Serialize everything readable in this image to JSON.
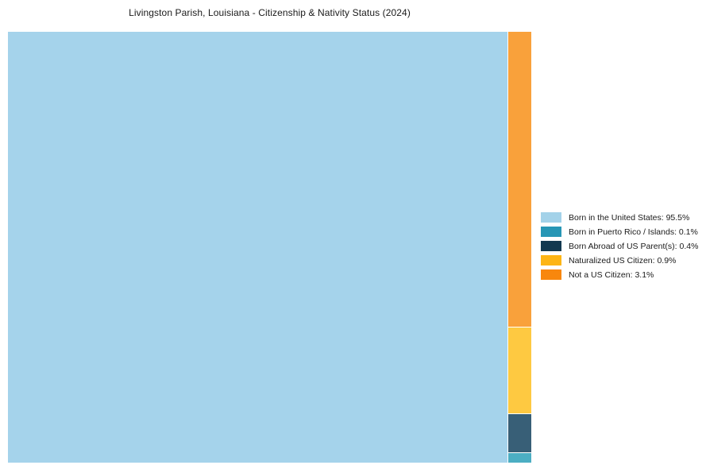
{
  "background_color": "#ffffff",
  "chart_data": {
    "type": "treemap",
    "title": "Livingston Parish, Louisiana - Citizenship & Nativity Status (2024)",
    "legend_position": "right",
    "layout": "largest value fills left block full-height; remaining values stacked top-to-bottom (descending) in right column",
    "units": "percent",
    "total_pct": 100,
    "items": [
      {
        "id": "born-us",
        "label": "Born in the United States",
        "value_pct": 95.5,
        "legend_text": "Born in the United States: 95.5%",
        "block_color": "#a5d3eb",
        "legend_color": "#a3d2e9"
      },
      {
        "id": "born-pr-islands",
        "label": "Born in Puerto Rico / Islands",
        "value_pct": 0.1,
        "legend_text": "Born in Puerto Rico / Islands: 0.1%",
        "block_color": "#4caec3",
        "legend_color": "#2796b5"
      },
      {
        "id": "born-abroad",
        "label": "Born Abroad of US Parent(s)",
        "value_pct": 0.4,
        "legend_text": "Born Abroad of US Parent(s): 0.4%",
        "block_color": "#385f77",
        "legend_color": "#133950"
      },
      {
        "id": "naturalized",
        "label": "Naturalized US Citizen",
        "value_pct": 0.9,
        "legend_text": "Naturalized US Citizen: 0.9%",
        "block_color": "#fec941",
        "legend_color": "#fdb515"
      },
      {
        "id": "not-citizen",
        "label": "Not a US Citizen",
        "value_pct": 3.1,
        "legend_text": "Not a US Citizen: 3.1%",
        "block_color": "#f9a13b",
        "legend_color": "#f8870d"
      }
    ]
  }
}
